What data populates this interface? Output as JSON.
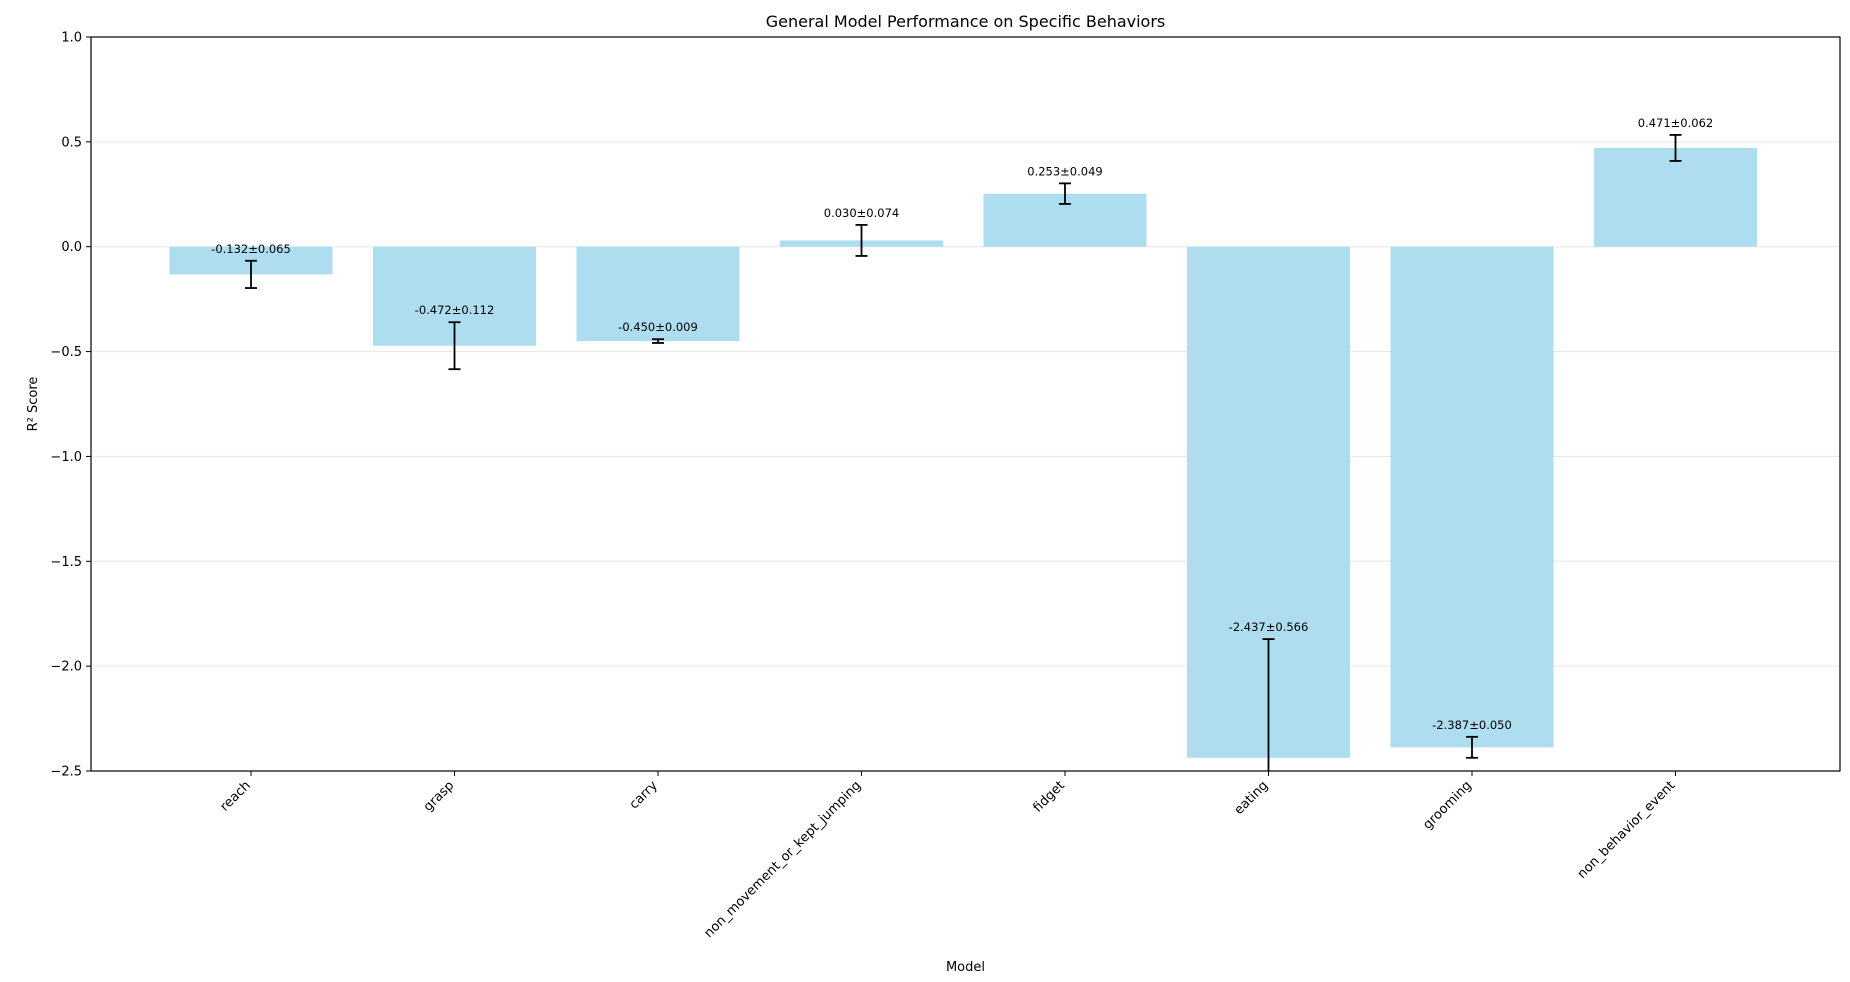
{
  "chart_data": {
    "type": "bar",
    "title": "General Model Performance on Specific Behaviors",
    "xlabel": "Model",
    "ylabel": "R² Score",
    "categories": [
      "reach",
      "grasp",
      "carry",
      "non_movement_or_kept_jumping",
      "fidget",
      "eating",
      "grooming",
      "non_behavior_event"
    ],
    "values": [
      -0.132,
      -0.472,
      -0.45,
      0.03,
      0.253,
      -2.437,
      -2.387,
      0.471
    ],
    "errors": [
      0.065,
      0.112,
      0.009,
      0.074,
      0.049,
      0.566,
      0.05,
      0.062
    ],
    "data_labels": [
      "-0.132±0.065",
      "-0.472±0.112",
      "-0.450±0.009",
      "0.030±0.074",
      "0.253±0.049",
      "-2.437±0.566",
      "-2.387±0.050",
      "0.471±0.062"
    ],
    "ylim": [
      -2.5,
      1.0
    ],
    "yticks": [
      1.0,
      0.5,
      0.0,
      -0.5,
      -1.0,
      -1.5,
      -2.0,
      -2.5
    ],
    "ytick_labels": [
      "1.0",
      "0.5",
      "0.0",
      "−0.5",
      "−1.0",
      "−1.5",
      "−2.0",
      "−2.5"
    ],
    "grid": "horizontal",
    "bar_color": "#ADDDEE",
    "grid_color": "#E6E6E6",
    "axis_color": "#000000",
    "errorbar_color": "#000000"
  }
}
